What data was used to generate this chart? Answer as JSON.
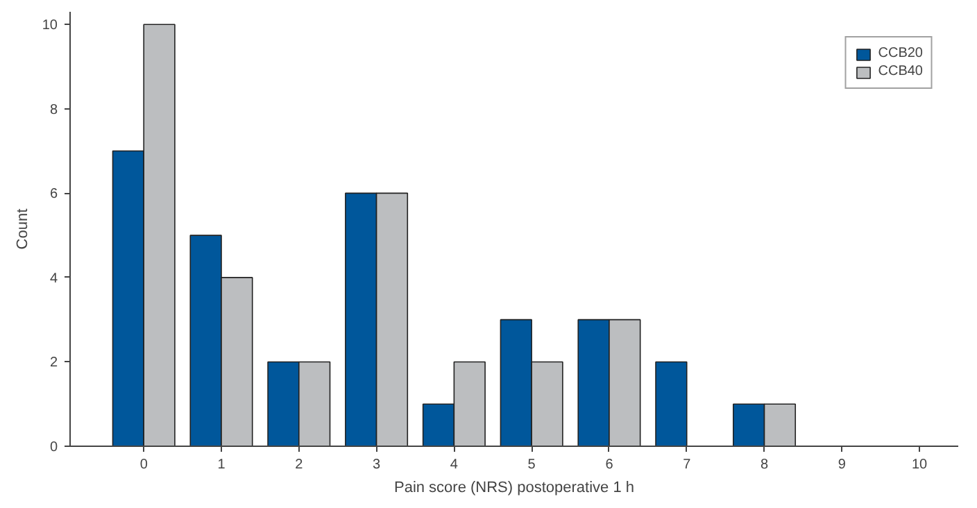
{
  "chart_data": {
    "type": "bar",
    "xlabel": "Pain score (NRS) postoperative 1 h",
    "ylabel": "Count",
    "categories": [
      "0",
      "1",
      "2",
      "3",
      "4",
      "5",
      "6",
      "7",
      "8",
      "9",
      "10"
    ],
    "series": [
      {
        "name": "CCB20",
        "color": "#00579b",
        "values": [
          7,
          5,
          2,
          6,
          1,
          3,
          3,
          2,
          1,
          0,
          0
        ]
      },
      {
        "name": "CCB40",
        "color": "#bcbec0",
        "values": [
          10,
          4,
          2,
          6,
          2,
          2,
          3,
          0,
          1,
          0,
          0
        ]
      }
    ],
    "ylim": [
      0,
      10.3
    ],
    "yticks": [
      0,
      2,
      4,
      6,
      8,
      10
    ],
    "grid": false,
    "legend": "top right"
  }
}
